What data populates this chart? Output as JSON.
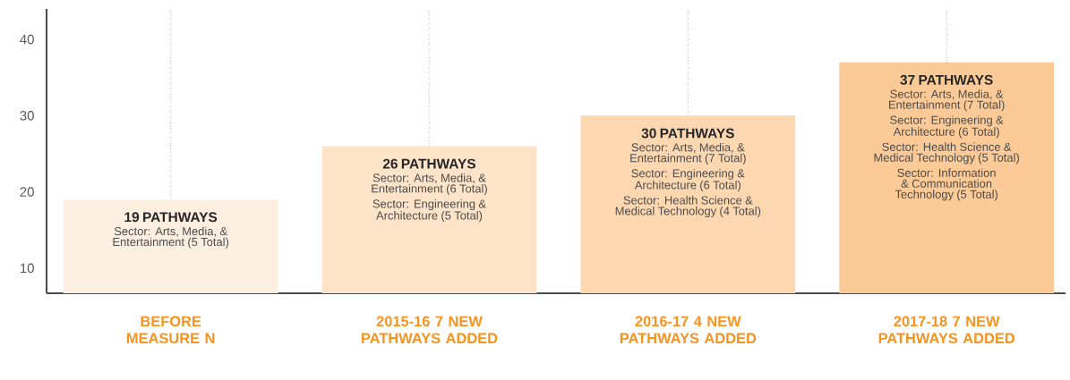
{
  "chart_data": {
    "type": "bar",
    "categories": [
      "BEFORE MEASURE N",
      "2015-16 7 NEW PATHWAYS ADDED",
      "2016-17 4 NEW PATHWAYS ADDED",
      "2017-18 7 NEW PATHWAYS ADDED"
    ],
    "values": [
      19,
      26,
      30,
      37
    ],
    "value_labels": [
      "19 PATHWAYS",
      "26 PATHWAYS",
      "30 PATHWAYS",
      "37 PATHWAYS"
    ],
    "colors": [
      "#fdefe0",
      "#fde3c8",
      "#fcd7b0",
      "#fbca96"
    ],
    "ylim": [
      6.7,
      44
    ],
    "yticks": [
      10,
      20,
      30,
      40
    ],
    "grid": "x",
    "annotations": [
      "Sector: Arts, Media, & Entertainment (5 Total)",
      "Sector: Arts, Media, & Entertainment (6 Total)",
      "Sector: Engineering & Architecture (5 Total)",
      "Sector: Arts, Media, & Entertainment (7 Total)",
      "Sector: Engineering & Architecture (6 Total)",
      "Sector: Health Science & Medical Technology (4 Total)",
      "Sector: Arts, Media, & Entertainment (7 Total)",
      "Sector: Engineering & Architecture (6 Total)",
      "Sector: Health Science & Medical Technology (5 Total)",
      "Sector: Information & Communication Technology (5 Total)"
    ]
  }
}
